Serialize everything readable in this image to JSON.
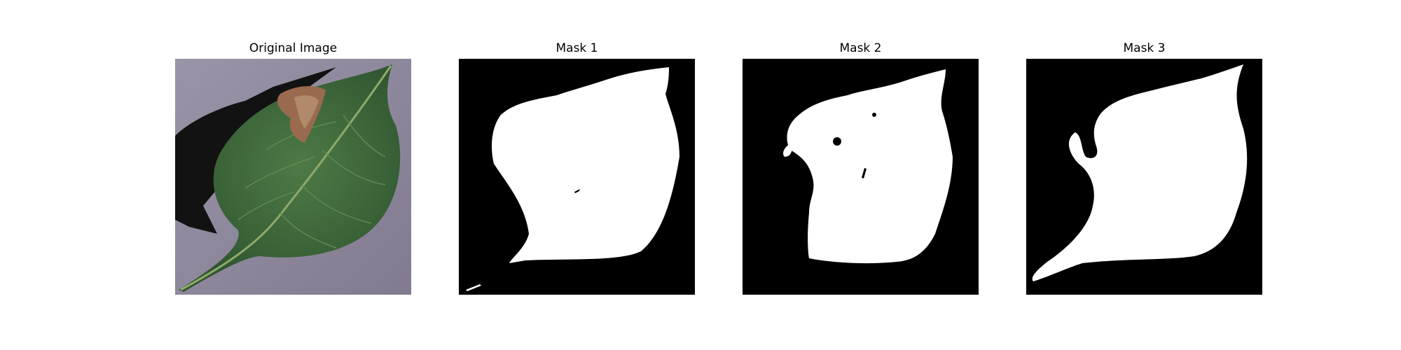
{
  "figure": {
    "panels": [
      {
        "title": "Original Image",
        "kind": "photo",
        "subject": "pepper-leaf-with-lesion"
      },
      {
        "title": "Mask 1",
        "kind": "binary-mask"
      },
      {
        "title": "Mask 2",
        "kind": "binary-mask"
      },
      {
        "title": "Mask 3",
        "kind": "binary-mask"
      }
    ],
    "colors": {
      "mask_background": "#000000",
      "mask_foreground": "#ffffff",
      "photo_background": "#8e8799",
      "leaf": "#3f6b3a",
      "lesion": "#9a6a4e"
    }
  }
}
